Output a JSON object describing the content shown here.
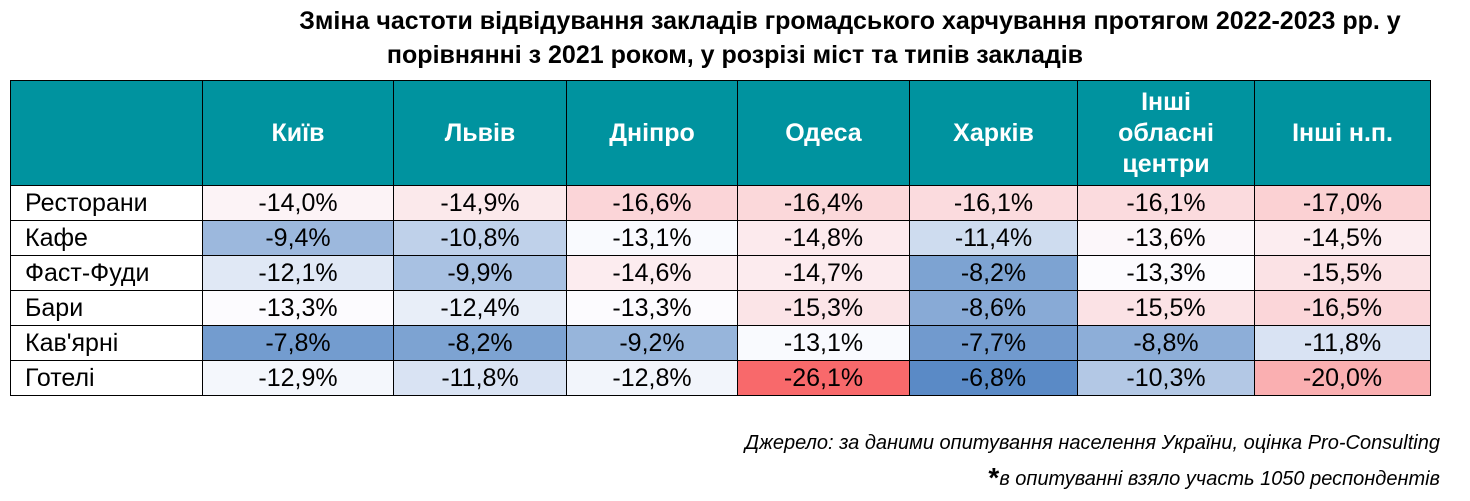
{
  "title_line1": "Зміна частоти відвідування закладів громадського харчування протягом 2022-2023 рр. у",
  "title_line2": "порівнянні з 2021 роком, у розрізі міст та типів закладів",
  "chart_data": {
    "type": "table",
    "title": "Зміна частоти відвідування закладів громадського харчування протягом 2022-2023 рр. у порівнянні з 2021 роком, у розрізі міст та типів закладів",
    "columns": [
      "Київ",
      "Львів",
      "Дніпро",
      "Одеса",
      "Харків",
      "Інші обласні центри",
      "Інші н.п."
    ],
    "rows": [
      {
        "label": "Ресторани",
        "values": [
          -14.0,
          -14.9,
          -16.6,
          -16.4,
          -16.1,
          -16.1,
          -17.0
        ],
        "display": [
          "-14,0%",
          "-14,9%",
          "-16,6%",
          "-16,4%",
          "-16,1%",
          "-16,1%",
          "-17,0%"
        ]
      },
      {
        "label": "Кафе",
        "values": [
          -9.4,
          -10.8,
          -13.1,
          -14.8,
          -11.4,
          -13.6,
          -14.5
        ],
        "display": [
          "-9,4%",
          "-10,8%",
          "-13,1%",
          "-14,8%",
          "-11,4%",
          "-13,6%",
          "-14,5%"
        ]
      },
      {
        "label": "Фаст-Фуди",
        "values": [
          -12.1,
          -9.9,
          -14.6,
          -14.7,
          -8.2,
          -13.3,
          -15.5
        ],
        "display": [
          "-12,1%",
          "-9,9%",
          "-14,6%",
          "-14,7%",
          "-8,2%",
          "-13,3%",
          "-15,5%"
        ]
      },
      {
        "label": "Бари",
        "values": [
          -13.3,
          -12.4,
          -13.3,
          -15.3,
          -8.6,
          -15.5,
          -16.5
        ],
        "display": [
          "-13,3%",
          "-12,4%",
          "-13,3%",
          "-15,3%",
          "-8,6%",
          "-15,5%",
          "-16,5%"
        ]
      },
      {
        "label": "Кав'ярні",
        "values": [
          -7.8,
          -8.2,
          -9.2,
          -13.1,
          -7.7,
          -8.8,
          -11.8
        ],
        "display": [
          "-7,8%",
          "-8,2%",
          "-9,2%",
          "-13,1%",
          "-7,7%",
          "-8,8%",
          "-11,8%"
        ]
      },
      {
        "label": "Готелі",
        "values": [
          -12.9,
          -11.8,
          -12.8,
          -26.1,
          -6.8,
          -10.3,
          -20.0
        ],
        "display": [
          "-12,9%",
          "-11,8%",
          "-12,8%",
          "-26,1%",
          "-6,8%",
          "-10,3%",
          "-20,0%"
        ]
      }
    ],
    "colors": {
      "header_bg": "#00939f",
      "header_text": "#ffffff",
      "scale_low": "#f8696b",
      "scale_mid": "#fcfcff",
      "scale_high": "#5a8ac6"
    }
  },
  "source": "Джерело: за даними опитування населення України, оцінка Pro-Consulting",
  "note_star": "*",
  "note": "в опитуванні взяло участь 1050 респондентів"
}
